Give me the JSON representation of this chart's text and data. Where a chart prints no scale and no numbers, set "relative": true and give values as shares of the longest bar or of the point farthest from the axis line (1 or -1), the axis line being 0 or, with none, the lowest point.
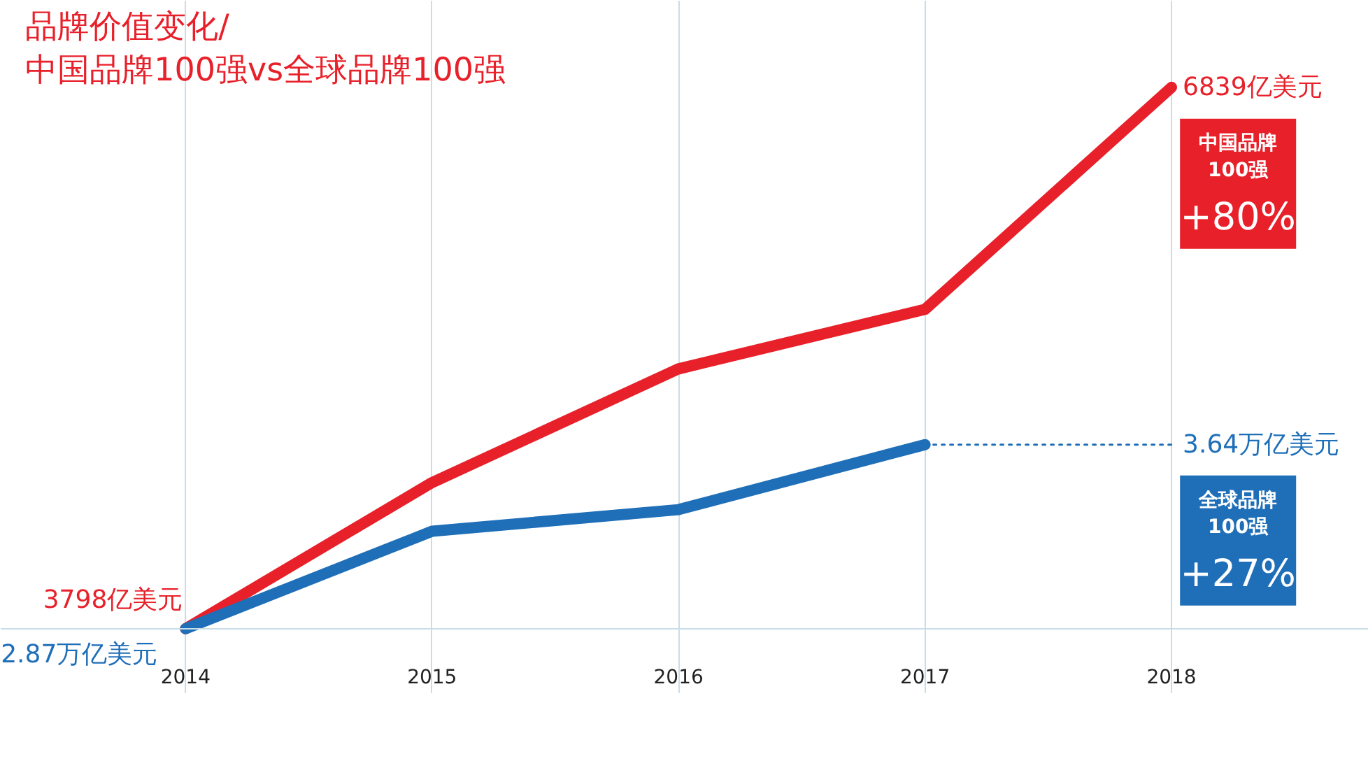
{
  "chart_data": {
    "type": "line",
    "title": "品牌价值变化/\n中国品牌100强vs全球品牌100强",
    "relative": true,
    "x": [
      2014,
      2015,
      2016,
      2017,
      2018
    ],
    "xlim": [
      2013.25,
      2018.8
    ],
    "xticks": [
      2014,
      2015,
      2016,
      2017,
      2018
    ],
    "grid": "x",
    "series": [
      {
        "color": "#e8202a",
        "values": [
          0,
          0.27,
          0.48,
          0.59,
          1
        ]
      },
      {
        "color": "#1f6fb8",
        "x": [
          2014,
          2015,
          2016,
          2017
        ],
        "values": [
          0,
          0.18,
          0.22,
          0.34
        ]
      },
      {
        "color": "#1f6fb8",
        "x": [
          2017,
          2018
        ],
        "values": [
          0.34,
          0.34
        ],
        "line_style": "dotted"
      }
    ],
    "annotations": [
      "3798亿美元",
      "6839亿美元",
      "2.87万亿美元",
      "3.64万亿美元",
      "中国品牌\n100强",
      "+80%",
      "全球品牌\n100强",
      "+27%"
    ]
  }
}
